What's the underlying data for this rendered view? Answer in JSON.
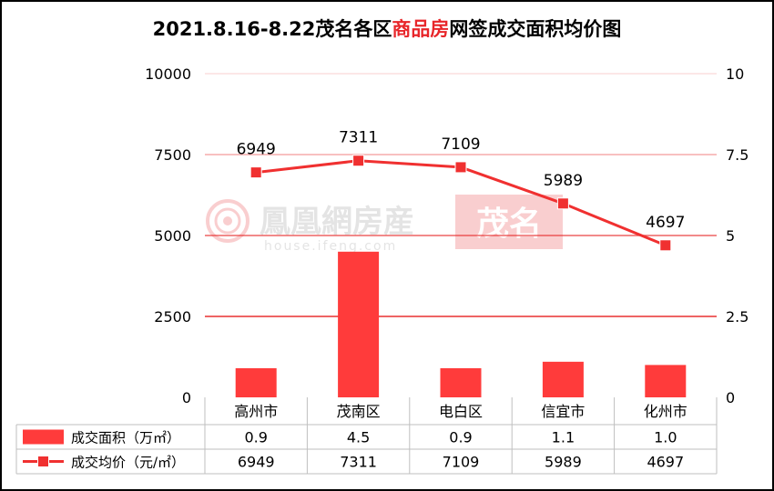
{
  "title": {
    "prefix": "2021.8.16-8.22茂名各区",
    "highlight": "商品房",
    "suffix": "网签成交面积均价图"
  },
  "colors": {
    "bar": "#ff3b3b",
    "line": "#f03030",
    "grid": "#e83030",
    "highlight": "#e8262a",
    "axis_text": "#000000"
  },
  "watermark": {
    "brand": "鳳凰網房産",
    "city": "茂名",
    "url": "house.ifeng.com"
  },
  "chart_data": {
    "type": "bar",
    "categories": [
      "高州市",
      "茂南区",
      "电白区",
      "信宜市",
      "化州市"
    ],
    "series": [
      {
        "name": "成交面积（万㎡）",
        "type": "bar",
        "axis": "right",
        "values": [
          0.9,
          4.5,
          0.9,
          1.1,
          1.0
        ]
      },
      {
        "name": "成交均价（元/㎡）",
        "type": "line",
        "axis": "left",
        "values": [
          6949,
          7311,
          7109,
          5989,
          4697
        ]
      }
    ],
    "y_left": {
      "range": [
        0,
        10000
      ],
      "ticks": [
        "0",
        "2500",
        "5000",
        "7500",
        "10000"
      ]
    },
    "y_right": {
      "range": [
        0,
        10
      ],
      "ticks": [
        "0",
        "2.5",
        "5",
        "7.5",
        "10"
      ]
    },
    "line_labels": [
      "6949",
      "7311",
      "7109",
      "5989",
      "4697"
    ],
    "table": {
      "rows": [
        {
          "label": "成交面积（万㎡）",
          "cells": [
            "0.9",
            "4.5",
            "0.9",
            "1.1",
            "1.0"
          ]
        },
        {
          "label": "成交均价（元/㎡）",
          "cells": [
            "6949",
            "7311",
            "7109",
            "5989",
            "4697"
          ]
        }
      ]
    },
    "grid": true,
    "legend": "table"
  }
}
